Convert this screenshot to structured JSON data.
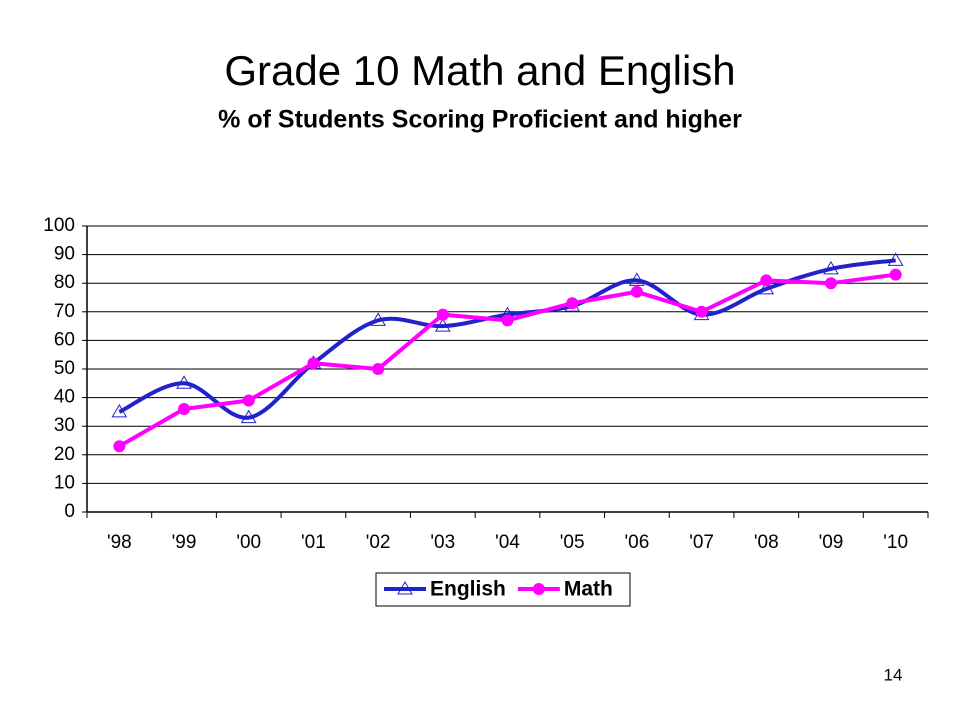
{
  "chart_data": {
    "type": "line",
    "title": "Grade 10 Math and English",
    "subtitle": "% of Students Scoring Proficient and higher",
    "categories": [
      "'98",
      "'99",
      "'00",
      "'01",
      "'02",
      "'03",
      "'04",
      "'05",
      "'06",
      "'07",
      "'08",
      "'09",
      "'10"
    ],
    "series": [
      {
        "name": "English",
        "color": "#2222cc",
        "marker": "triangle",
        "smooth": true,
        "values": [
          35,
          45,
          33,
          52,
          67,
          65,
          69,
          72,
          81,
          69,
          78,
          85,
          88
        ]
      },
      {
        "name": "Math",
        "color": "#ff00ff",
        "marker": "circle",
        "smooth": false,
        "values": [
          23,
          36,
          39,
          52,
          50,
          69,
          67,
          73,
          77,
          70,
          81,
          80,
          83
        ]
      }
    ],
    "ylim": [
      0,
      100
    ],
    "yticks": [
      0,
      10,
      20,
      30,
      40,
      50,
      60,
      70,
      80,
      90,
      100
    ],
    "grid": true,
    "legend": "bottom"
  },
  "page_number": "14"
}
